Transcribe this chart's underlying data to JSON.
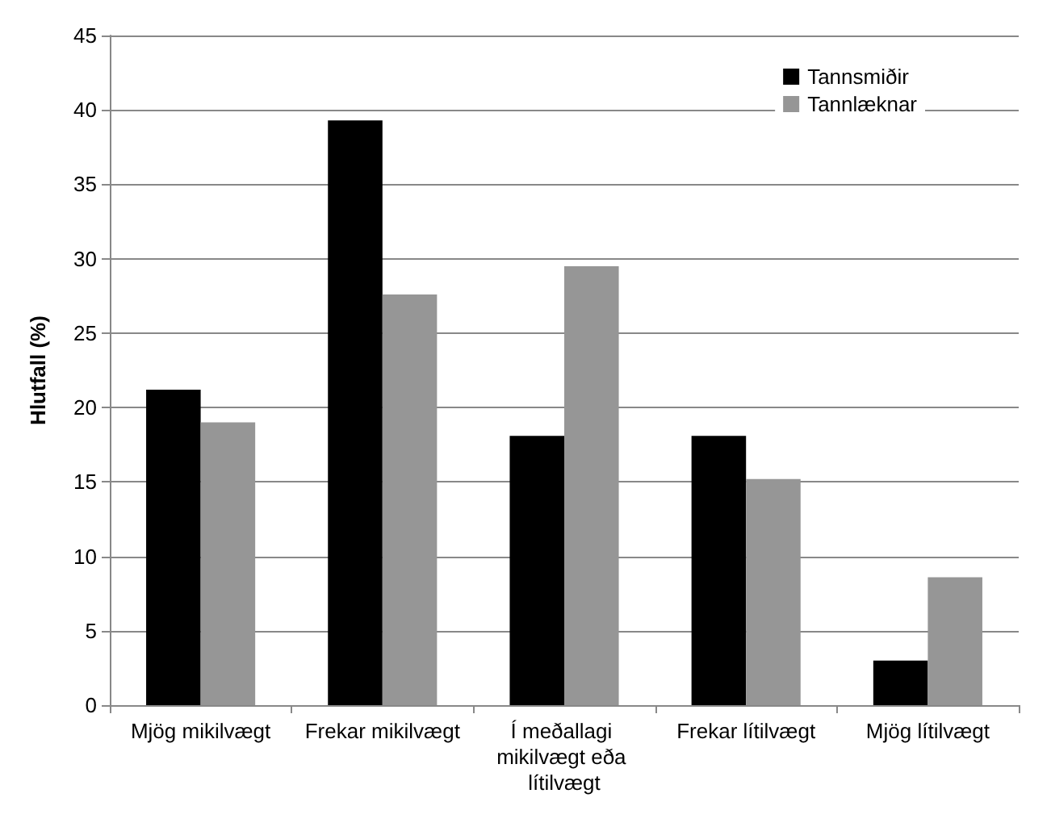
{
  "chart_data": {
    "type": "bar",
    "ylabel": "Hlutfall (%)",
    "categories": [
      "Mjög mikilvægt",
      "Frekar mikilvægt",
      "Í meðallagi mikilvægt eða lítilvægt",
      "Frekar lítilvægt",
      "Mjög lítilvægt"
    ],
    "series": [
      {
        "name": "Tannsmiðir",
        "color": "#000000",
        "values": [
          21.2,
          39.3,
          18.1,
          18.1,
          3.0
        ]
      },
      {
        "name": "Tannlæknar",
        "color": "#969696",
        "values": [
          19.0,
          27.6,
          29.5,
          15.2,
          8.6
        ]
      }
    ],
    "ylim": [
      0,
      45
    ],
    "yticks": [
      0,
      5,
      10,
      15,
      20,
      25,
      30,
      35,
      40,
      45
    ],
    "grid": "y",
    "legend": "top right"
  }
}
